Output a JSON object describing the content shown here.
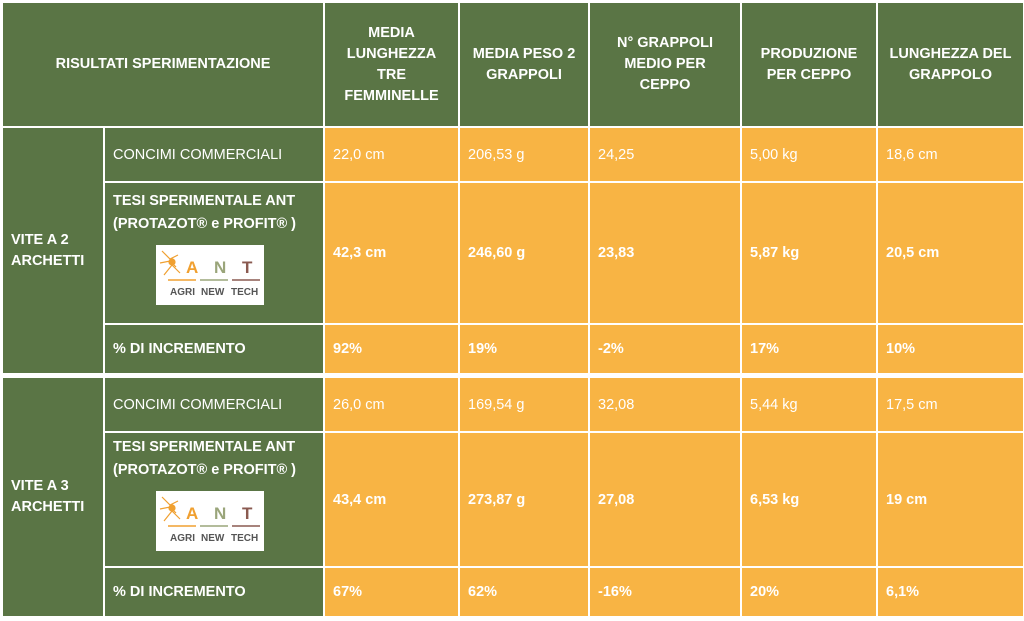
{
  "header": {
    "title": "RISULTATI SPERIMENTAZIONE",
    "columns": [
      "MEDIA LUNGHEZZA TRE FEMMINELLE",
      "MEDIA PESO 2 GRAPPOLI",
      "N° GRAPPOLI MEDIO PER CEPPO",
      "PRODUZIONE PER CEPPO",
      "LUNGHEZZA DEL GRAPPOLO"
    ]
  },
  "logo": {
    "letters": [
      "A",
      "N",
      "T"
    ],
    "words": [
      "AGRI",
      "NEW",
      "TECH"
    ],
    "colors": {
      "a": "#f0a030",
      "n": "#9aa57a",
      "t": "#8a5a50"
    }
  },
  "groups": [
    {
      "name": "VITE A 2 ARCHETTI",
      "rows": [
        {
          "label": "CONCIMI COMMERCIALI",
          "values": [
            "22,0 cm",
            "206,53 g",
            "24,25",
            "5,00 kg",
            "18,6 cm"
          ]
        },
        {
          "label_line1": "TESI SPERIMENTALE ANT",
          "label_line2": "(PROTAZOT® e PROFIT® )",
          "values": [
            "42,3 cm",
            "246,60 g",
            "23,83",
            "5,87 kg",
            "20,5 cm"
          ]
        },
        {
          "label": "% DI INCREMENTO",
          "values": [
            "92%",
            "19%",
            "-2%",
            "17%",
            "10%"
          ]
        }
      ]
    },
    {
      "name": "VITE A 3 ARCHETTI",
      "rows": [
        {
          "label": "CONCIMI COMMERCIALI",
          "values": [
            "26,0 cm",
            "169,54 g",
            "32,08",
            "5,44 kg",
            "17,5 cm"
          ]
        },
        {
          "label_line1": "TESI SPERIMENTALE ANT",
          "label_line2": "(PROTAZOT® e PROFIT® )",
          "values": [
            "43,4 cm",
            "273,87 g",
            "27,08",
            "6,53 kg",
            "19 cm"
          ]
        },
        {
          "label": "% DI INCREMENTO",
          "values": [
            "67%",
            "62%",
            "-16%",
            "20%",
            "6,1%"
          ]
        }
      ]
    }
  ]
}
